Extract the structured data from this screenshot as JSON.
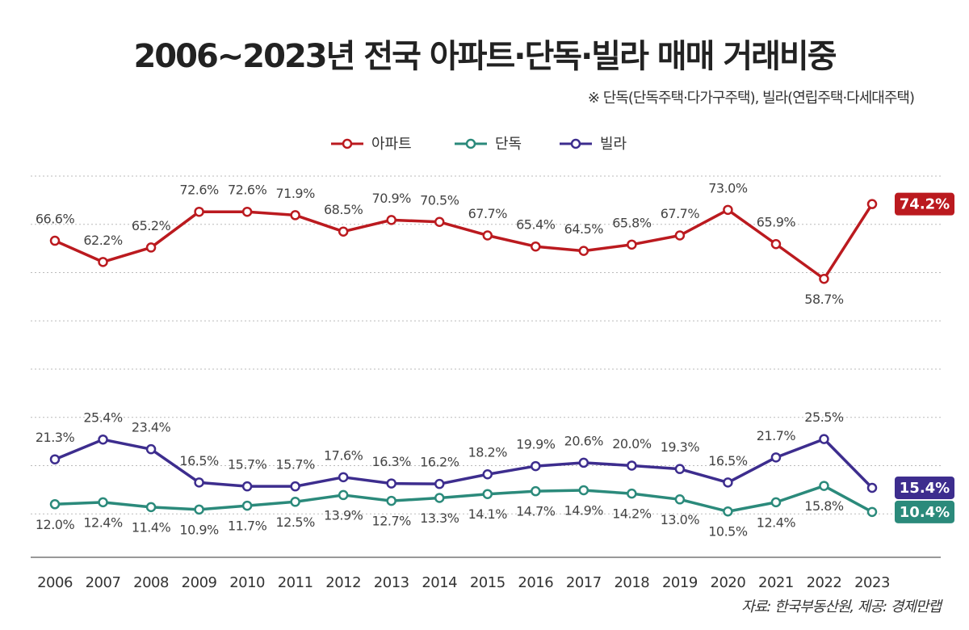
{
  "chart_data": {
    "type": "line",
    "title": "2006~2023년 전국 아파트·단독·빌라 매매 거래비중",
    "subtitle": "※ 단독(단독주택·다가구주택), 빌라(연립주택·다세대주택)",
    "source": "자료: 한국부동산원, 제공: 경제만랩",
    "categories": [
      "2006",
      "2007",
      "2008",
      "2009",
      "2010",
      "2011",
      "2012",
      "2013",
      "2014",
      "2015",
      "2016",
      "2017",
      "2018",
      "2019",
      "2020",
      "2021",
      "2022",
      "2023"
    ],
    "ylim": [
      1,
      80
    ],
    "yticks": [
      10,
      20,
      30,
      40,
      50,
      60,
      70,
      80
    ],
    "grid": true,
    "legend": "top",
    "series": [
      {
        "name": "아파트",
        "color": "#bb1a1f",
        "values": [
          66.6,
          62.2,
          65.2,
          72.6,
          72.6,
          71.9,
          68.5,
          70.9,
          70.5,
          67.7,
          65.4,
          64.5,
          65.8,
          67.7,
          73.0,
          65.9,
          58.7,
          74.2
        ],
        "value_labels": [
          "66.6%",
          "62.2%",
          "65.2%",
          "72.6%",
          "72.6%",
          "71.9%",
          "68.5%",
          "70.9%",
          "70.5%",
          "67.7%",
          "65.4%",
          "64.5%",
          "65.8%",
          "67.7%",
          "73.0%",
          "65.9%",
          "58.7%",
          "74.2%"
        ]
      },
      {
        "name": "단독",
        "color": "#2b8a7b",
        "values": [
          12.0,
          12.4,
          11.4,
          10.9,
          11.7,
          12.5,
          13.9,
          12.7,
          13.3,
          14.1,
          14.7,
          14.9,
          14.2,
          13.0,
          10.5,
          12.4,
          15.8,
          10.4
        ],
        "value_labels": [
          "12.0%",
          "12.4%",
          "11.4%",
          "10.9%",
          "11.7%",
          "12.5%",
          "13.9%",
          "12.7%",
          "13.3%",
          "14.1%",
          "14.7%",
          "14.9%",
          "14.2%",
          "13.0%",
          "10.5%",
          "12.4%",
          "15.8%",
          "10.4%"
        ]
      },
      {
        "name": "빌라",
        "color": "#3d2d8e",
        "values": [
          21.3,
          25.4,
          23.4,
          16.5,
          15.7,
          15.7,
          17.6,
          16.3,
          16.2,
          18.2,
          19.9,
          20.6,
          20.0,
          19.3,
          16.5,
          21.7,
          25.5,
          15.4
        ],
        "value_labels": [
          "21.3%",
          "25.4%",
          "23.4%",
          "16.5%",
          "15.7%",
          "15.7%",
          "17.6%",
          "16.3%",
          "16.2%",
          "18.2%",
          "19.9%",
          "20.6%",
          "20.0%",
          "19.3%",
          "16.5%",
          "21.7%",
          "25.5%",
          "15.4%"
        ]
      }
    ]
  }
}
